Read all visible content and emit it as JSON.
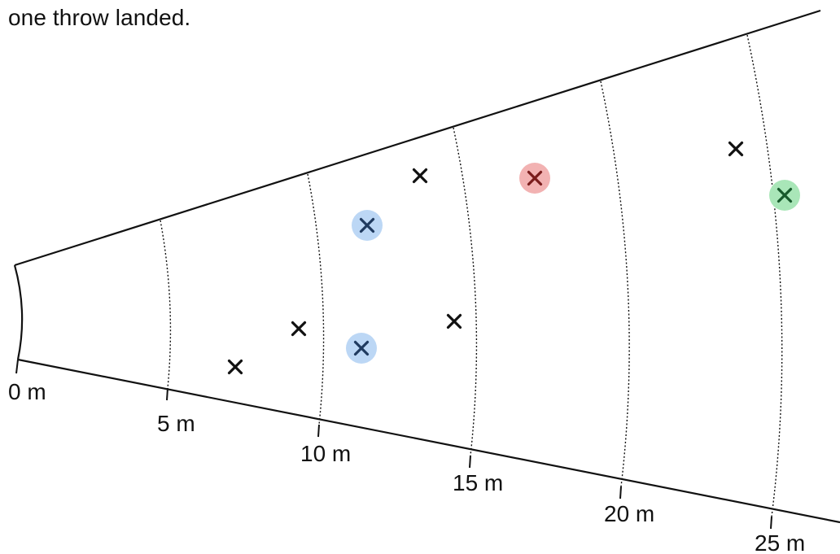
{
  "intro_text": "one throw landed.",
  "distance_labels": [
    "0 m",
    "5 m",
    "10 m",
    "15 m",
    "20 m",
    "25 m"
  ],
  "throws": [
    {
      "id": "throw-1",
      "highlight": null
    },
    {
      "id": "throw-2",
      "highlight": null
    },
    {
      "id": "throw-3",
      "highlight": "blue"
    },
    {
      "id": "throw-4",
      "highlight": null
    },
    {
      "id": "throw-5",
      "highlight": "blue"
    },
    {
      "id": "throw-6",
      "highlight": null
    },
    {
      "id": "throw-7",
      "highlight": "red"
    },
    {
      "id": "throw-8",
      "highlight": null
    },
    {
      "id": "throw-9",
      "highlight": "green"
    }
  ],
  "colors": {
    "ink": "#111111",
    "blue": "#bcd7f5",
    "red": "#f2b2b2",
    "green": "#a9e6b8",
    "mark_on_blue": "#1f3a5f",
    "mark_on_red": "#7a1c1c",
    "mark_on_green": "#185a2c"
  }
}
